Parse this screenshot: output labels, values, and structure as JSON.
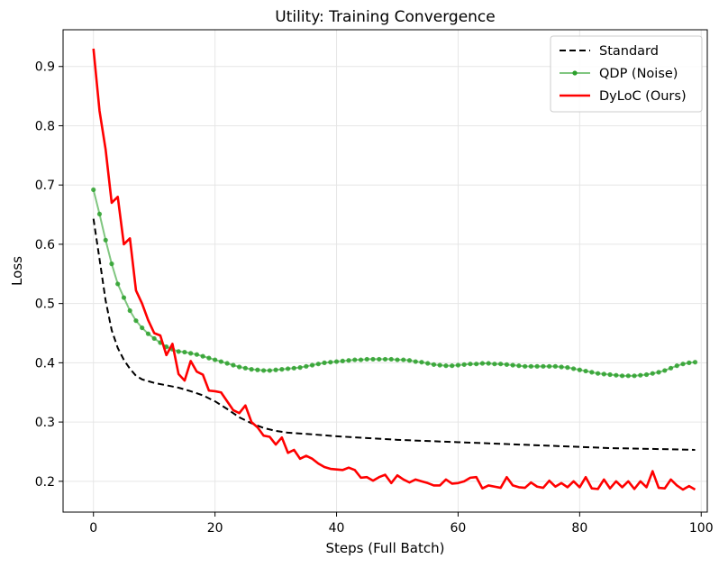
{
  "chart_data": {
    "type": "line",
    "title": "Utility: Training Convergence",
    "xlabel": "Steps (Full Batch)",
    "ylabel": "Loss",
    "xlim": [
      -5,
      101
    ],
    "ylim": [
      0.148,
      0.962
    ],
    "xticks": [
      0,
      20,
      40,
      60,
      80,
      100
    ],
    "yticks": [
      0.2,
      0.3,
      0.4,
      0.5,
      0.6,
      0.7,
      0.8,
      0.9
    ],
    "grid": true,
    "legend_position": "top-right",
    "series": [
      {
        "name": "Standard",
        "color": "#000000",
        "style": "dashed",
        "x": [
          0,
          1,
          2,
          3,
          4,
          5,
          6,
          7,
          8,
          10,
          12,
          14,
          16,
          18,
          20,
          22,
          24,
          26,
          28,
          30,
          32,
          35,
          40,
          45,
          50,
          55,
          60,
          65,
          70,
          75,
          80,
          85,
          90,
          95,
          99
        ],
        "values": [
          0.643,
          0.575,
          0.505,
          0.455,
          0.425,
          0.405,
          0.39,
          0.378,
          0.372,
          0.366,
          0.362,
          0.358,
          0.352,
          0.345,
          0.335,
          0.322,
          0.308,
          0.298,
          0.29,
          0.285,
          0.282,
          0.28,
          0.276,
          0.273,
          0.27,
          0.268,
          0.266,
          0.264,
          0.262,
          0.26,
          0.258,
          0.256,
          0.255,
          0.254,
          0.253
        ]
      },
      {
        "name": "QDP (Noise)",
        "color": "#2ca02c",
        "style": "line-dot",
        "x": [
          0,
          1,
          2,
          3,
          4,
          5,
          6,
          7,
          8,
          9,
          10,
          11,
          12,
          13,
          14,
          15,
          16,
          17,
          18,
          19,
          20,
          21,
          22,
          23,
          24,
          25,
          26,
          27,
          28,
          29,
          30,
          31,
          32,
          33,
          34,
          35,
          36,
          37,
          38,
          39,
          40,
          41,
          42,
          43,
          44,
          45,
          46,
          47,
          48,
          49,
          50,
          51,
          52,
          53,
          54,
          55,
          56,
          57,
          58,
          59,
          60,
          61,
          62,
          63,
          64,
          65,
          66,
          67,
          68,
          69,
          70,
          71,
          72,
          73,
          74,
          75,
          76,
          77,
          78,
          79,
          80,
          81,
          82,
          83,
          84,
          85,
          86,
          87,
          88,
          89,
          90,
          91,
          92,
          93,
          94,
          95,
          96,
          97,
          98,
          99
        ],
        "values": [
          0.692,
          0.651,
          0.607,
          0.567,
          0.533,
          0.51,
          0.488,
          0.471,
          0.459,
          0.449,
          0.441,
          0.434,
          0.427,
          0.423,
          0.419,
          0.418,
          0.416,
          0.414,
          0.411,
          0.408,
          0.405,
          0.402,
          0.399,
          0.396,
          0.393,
          0.391,
          0.389,
          0.388,
          0.387,
          0.387,
          0.388,
          0.389,
          0.39,
          0.391,
          0.392,
          0.394,
          0.396,
          0.398,
          0.4,
          0.401,
          0.402,
          0.403,
          0.404,
          0.405,
          0.405,
          0.406,
          0.406,
          0.406,
          0.406,
          0.406,
          0.405,
          0.405,
          0.404,
          0.402,
          0.401,
          0.399,
          0.397,
          0.396,
          0.395,
          0.395,
          0.396,
          0.397,
          0.398,
          0.398,
          0.399,
          0.399,
          0.398,
          0.398,
          0.397,
          0.396,
          0.395,
          0.394,
          0.394,
          0.394,
          0.394,
          0.394,
          0.394,
          0.393,
          0.392,
          0.39,
          0.388,
          0.386,
          0.384,
          0.382,
          0.381,
          0.38,
          0.379,
          0.378,
          0.378,
          0.378,
          0.379,
          0.38,
          0.382,
          0.384,
          0.387,
          0.391,
          0.395,
          0.398,
          0.4,
          0.401
        ]
      },
      {
        "name": "DyLoC (Ours)",
        "color": "#ff0000",
        "style": "solid",
        "x": [
          0,
          1,
          2,
          3,
          4,
          5,
          6,
          7,
          8,
          9,
          10,
          11,
          12,
          13,
          14,
          15,
          16,
          17,
          18,
          19,
          20,
          21,
          22,
          23,
          24,
          25,
          26,
          27,
          28,
          29,
          30,
          31,
          32,
          33,
          34,
          35,
          36,
          37,
          38,
          39,
          40,
          41,
          42,
          43,
          44,
          45,
          46,
          47,
          48,
          49,
          50,
          51,
          52,
          53,
          54,
          55,
          56,
          57,
          58,
          59,
          60,
          61,
          62,
          63,
          64,
          65,
          66,
          67,
          68,
          69,
          70,
          71,
          72,
          73,
          74,
          75,
          76,
          77,
          78,
          79,
          80,
          81,
          82,
          83,
          84,
          85,
          86,
          87,
          88,
          89,
          90,
          91,
          92,
          93,
          94,
          95,
          96,
          97,
          98,
          99
        ],
        "values": [
          0.93,
          0.825,
          0.76,
          0.67,
          0.68,
          0.6,
          0.61,
          0.522,
          0.5,
          0.472,
          0.45,
          0.446,
          0.413,
          0.432,
          0.381,
          0.37,
          0.403,
          0.385,
          0.38,
          0.353,
          0.352,
          0.35,
          0.335,
          0.32,
          0.315,
          0.328,
          0.3,
          0.291,
          0.277,
          0.275,
          0.262,
          0.274,
          0.248,
          0.253,
          0.238,
          0.243,
          0.238,
          0.23,
          0.224,
          0.221,
          0.22,
          0.219,
          0.223,
          0.219,
          0.206,
          0.207,
          0.201,
          0.207,
          0.211,
          0.197,
          0.21,
          0.203,
          0.198,
          0.203,
          0.2,
          0.197,
          0.193,
          0.193,
          0.203,
          0.196,
          0.197,
          0.2,
          0.206,
          0.207,
          0.188,
          0.193,
          0.191,
          0.189,
          0.207,
          0.193,
          0.19,
          0.189,
          0.198,
          0.191,
          0.189,
          0.201,
          0.191,
          0.197,
          0.19,
          0.2,
          0.19,
          0.207,
          0.188,
          0.187,
          0.203,
          0.188,
          0.2,
          0.19,
          0.2,
          0.187,
          0.2,
          0.19,
          0.217,
          0.189,
          0.188,
          0.203,
          0.193,
          0.186,
          0.192,
          0.186
        ]
      }
    ]
  }
}
